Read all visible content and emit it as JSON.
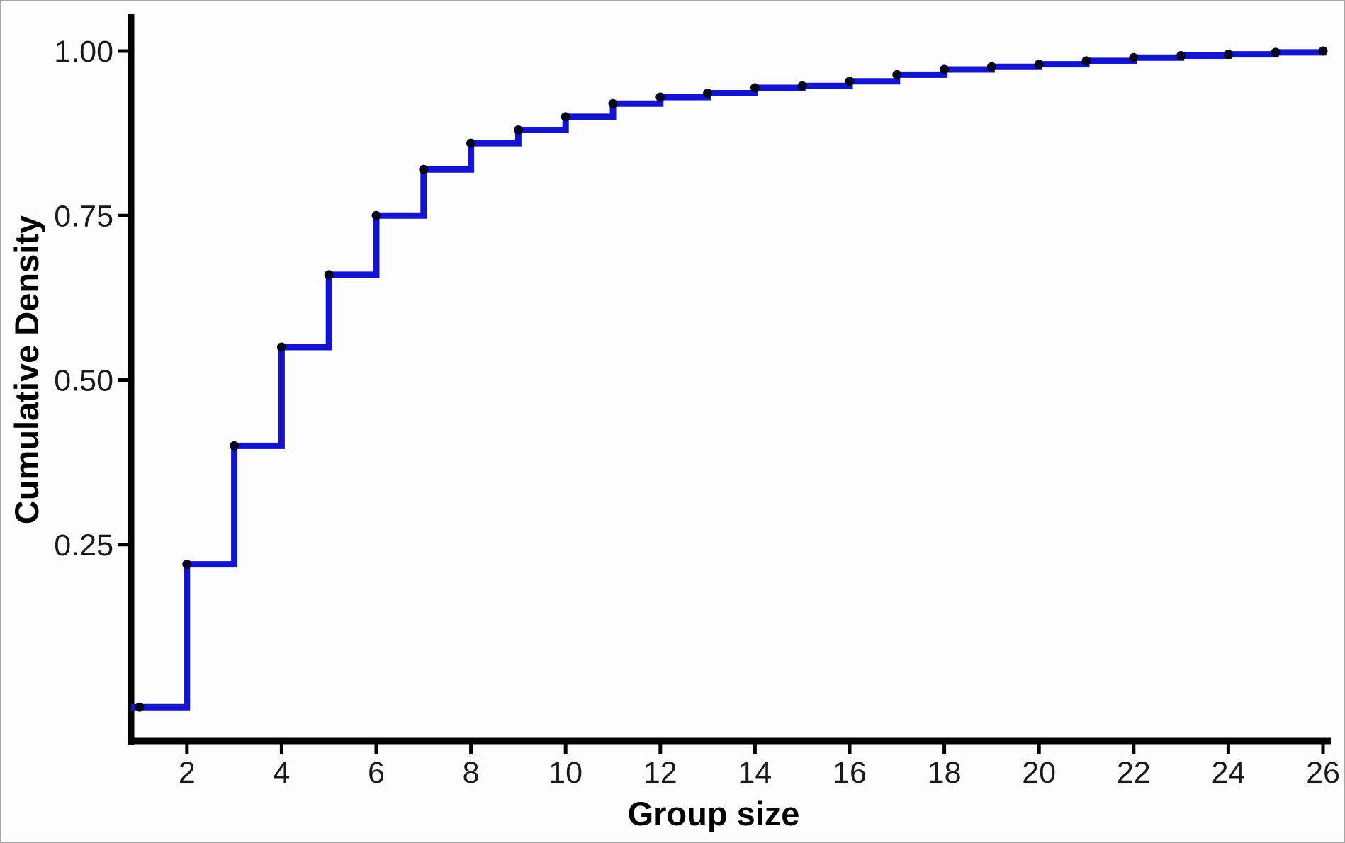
{
  "figure": {
    "background": "#fcfcfc",
    "border_color": "#a6a6a6"
  },
  "chart_data": {
    "type": "step",
    "subtype": "ecdf",
    "title": "",
    "xlabel": "Group size",
    "ylabel": "Cumulative Density",
    "x": [
      1,
      2,
      3,
      4,
      5,
      6,
      7,
      8,
      9,
      10,
      11,
      12,
      13,
      14,
      15,
      16,
      17,
      18,
      19,
      20,
      21,
      22,
      23,
      24,
      25,
      26
    ],
    "y": [
      0.003,
      0.22,
      0.4,
      0.55,
      0.66,
      0.75,
      0.82,
      0.86,
      0.88,
      0.9,
      0.92,
      0.93,
      0.936,
      0.944,
      0.947,
      0.954,
      0.964,
      0.972,
      0.976,
      0.98,
      0.985,
      0.99,
      0.993,
      0.995,
      0.998,
      1.0
    ],
    "x_ticks": [
      2,
      4,
      6,
      8,
      10,
      12,
      14,
      16,
      18,
      20,
      22,
      24,
      26
    ],
    "x_tick_labels": [
      "2",
      "4",
      "6",
      "8",
      "10",
      "12",
      "14",
      "16",
      "18",
      "20",
      "22",
      "24",
      "26"
    ],
    "y_ticks": [
      0.25,
      0.5,
      0.75,
      1.0
    ],
    "y_tick_labels": [
      "0.25",
      "0.50",
      "0.75",
      "1.00"
    ],
    "xlim": [
      0.8,
      26.2
    ],
    "ylim": [
      -0.05,
      1.05
    ],
    "grid": false,
    "legend": "none",
    "line_color": "#1414cc",
    "point_color": "#07071f",
    "axis_color": "#000000"
  }
}
